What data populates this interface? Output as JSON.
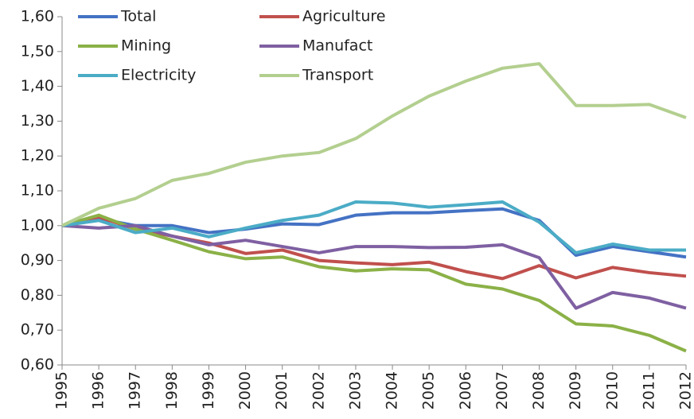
{
  "chart_data": {
    "type": "line",
    "categories": [
      "1995",
      "1996",
      "1997",
      "1998",
      "1999",
      "2000",
      "2001",
      "2002",
      "2003",
      "2004",
      "2005",
      "2006",
      "2007",
      "2008",
      "2009",
      "2010",
      "2011",
      "2012"
    ],
    "series": [
      {
        "name": "Total",
        "color": "#4472c4",
        "values": [
          1.0,
          1.02,
          1.0,
          1.0,
          0.98,
          0.99,
          1.005,
          1.003,
          1.03,
          1.037,
          1.037,
          1.043,
          1.048,
          1.015,
          0.915,
          0.94,
          0.925,
          0.91
        ]
      },
      {
        "name": "Agriculture",
        "color": "#c0504d",
        "values": [
          1.0,
          1.025,
          0.99,
          0.97,
          0.95,
          0.92,
          0.93,
          0.9,
          0.893,
          0.888,
          0.895,
          0.868,
          0.848,
          0.885,
          0.85,
          0.88,
          0.865,
          0.855
        ]
      },
      {
        "name": "Mining",
        "color": "#8bb147",
        "values": [
          1.0,
          1.03,
          0.99,
          0.958,
          0.925,
          0.905,
          0.91,
          0.882,
          0.87,
          0.876,
          0.873,
          0.832,
          0.818,
          0.785,
          0.718,
          0.712,
          0.685,
          0.64
        ]
      },
      {
        "name": "Manufact",
        "color": "#7f60a2",
        "values": [
          1.0,
          0.993,
          1.0,
          0.97,
          0.945,
          0.958,
          0.94,
          0.922,
          0.94,
          0.94,
          0.937,
          0.938,
          0.945,
          0.908,
          0.763,
          0.808,
          0.792,
          0.763
        ]
      },
      {
        "name": "Electricity",
        "color": "#4bacc6",
        "values": [
          1.0,
          1.015,
          0.98,
          0.993,
          0.968,
          0.993,
          1.015,
          1.03,
          1.068,
          1.065,
          1.053,
          1.06,
          1.068,
          1.01,
          0.922,
          0.947,
          0.93,
          0.93
        ]
      },
      {
        "name": "Transport",
        "color": "#b3cf8f",
        "values": [
          1.0,
          1.05,
          1.078,
          1.13,
          1.15,
          1.182,
          1.2,
          1.21,
          1.25,
          1.315,
          1.372,
          1.415,
          1.452,
          1.465,
          1.345,
          1.345,
          1.348,
          1.31
        ]
      }
    ],
    "ylim": [
      0.6,
      1.6
    ],
    "yticks": [
      {
        "value": 0.6,
        "label": "0,60"
      },
      {
        "value": 0.7,
        "label": "0,70"
      },
      {
        "value": 0.8,
        "label": "0,80"
      },
      {
        "value": 0.9,
        "label": "0,90"
      },
      {
        "value": 1.0,
        "label": "1,00"
      },
      {
        "value": 1.1,
        "label": "1,10"
      },
      {
        "value": 1.2,
        "label": "1,20"
      },
      {
        "value": 1.3,
        "label": "1,30"
      },
      {
        "value": 1.4,
        "label": "1,40"
      },
      {
        "value": 1.5,
        "label": "1,50"
      },
      {
        "value": 1.6,
        "label": "1,60"
      }
    ],
    "grid": false,
    "legend": "upper left"
  }
}
